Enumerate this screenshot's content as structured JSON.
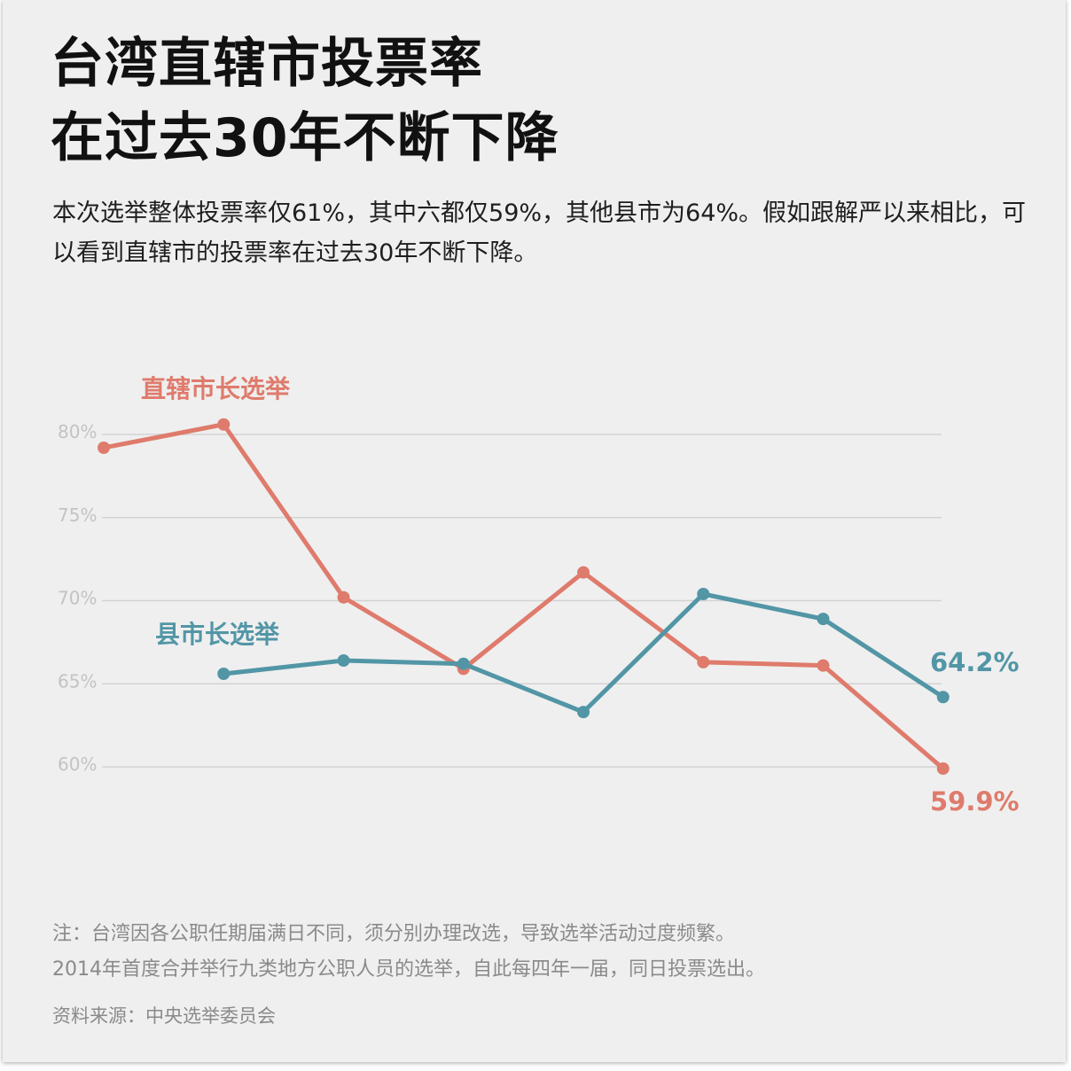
{
  "title": {
    "line1": "台湾直辖市投票率",
    "line2": "在过去30年不断下降"
  },
  "subtitle": "本次选举整体投票率仅61%，其中六都仅59%，其他县市为64%。假如跟解严以来相比，可以看到直辖市的投票率在过去30年不断下降。",
  "note": {
    "line1": "注：台湾因各公职任期届满日不同，须分别办理改选，导致选举活动过度频繁。",
    "line2": "2014年首度合并举行九类地方公职人员的选举，自此每四年一届，同日投票选出。"
  },
  "source": "资料来源：中央选举委员会",
  "colors": {
    "municipal": "#df7b6c",
    "county": "#5296a6",
    "grid": "#d3d3d3",
    "tick": "#c3c3c3"
  },
  "chart_data": {
    "type": "line",
    "ylim": [
      60,
      80
    ],
    "yticks": [
      "80%",
      "75%",
      "70%",
      "65%",
      "60%"
    ],
    "ytick_values": [
      80,
      75,
      70,
      65,
      60
    ],
    "x": [
      1,
      2,
      3,
      4,
      5,
      6,
      7,
      8
    ],
    "series": [
      {
        "name": "直辖市长选举",
        "color": "#df7b6c",
        "values": [
          79.2,
          80.6,
          70.2,
          65.9,
          71.7,
          66.3,
          66.1,
          59.9
        ],
        "end_label": "59.9%"
      },
      {
        "name": "县市长选举",
        "color": "#5296a6",
        "values": [
          null,
          65.6,
          66.4,
          66.2,
          63.3,
          70.4,
          68.9,
          64.2
        ],
        "end_label": "64.2%"
      }
    ],
    "grid": true
  }
}
